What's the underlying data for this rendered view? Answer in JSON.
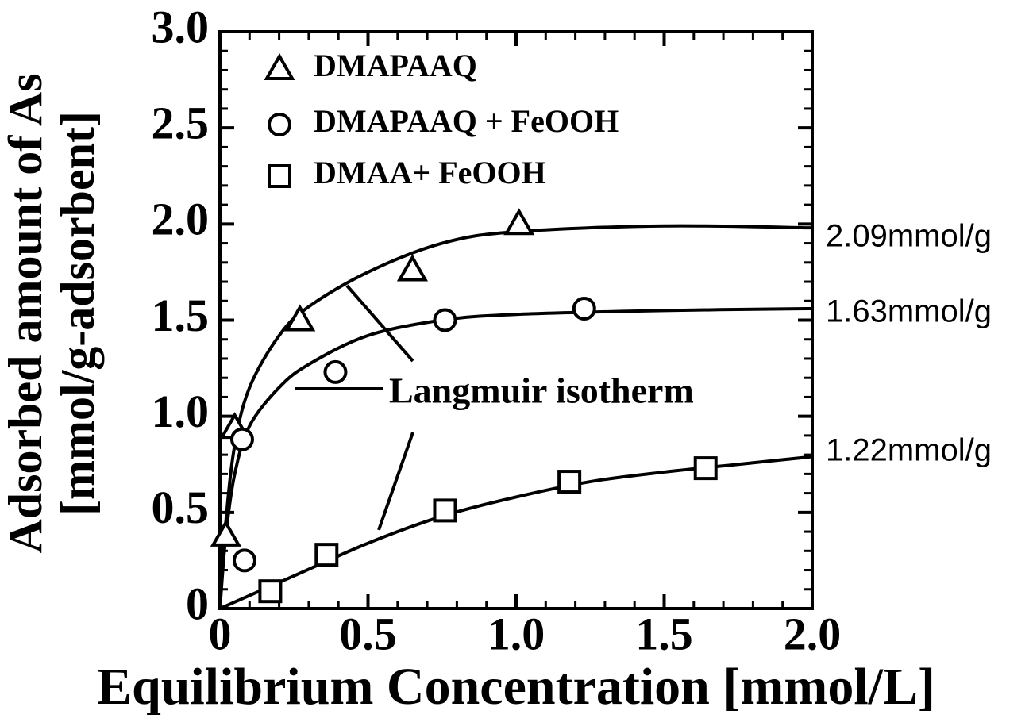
{
  "chart_data": {
    "type": "scatter",
    "xlabel": "Equilibrium Concentration [mmol/L]",
    "ylabel": [
      "Adsorbed amount of  As",
      "[mmol/g-adsorbent]"
    ],
    "xlim": [
      0,
      2.0
    ],
    "ylim": [
      0,
      3.0
    ],
    "xticks": [
      0,
      0.5,
      {
        "value": 1,
        "label": "1.0"
      },
      1.5,
      {
        "value": 2,
        "label": "2.0"
      }
    ],
    "yticks": [
      0,
      0.5,
      {
        "value": 1,
        "label": "1.0"
      },
      1.5,
      {
        "value": 2,
        "label": "2.0"
      },
      2.5,
      {
        "value": 3,
        "label": "3.0"
      }
    ],
    "color": "#000000",
    "series": [
      {
        "name": "DMAPAAQ",
        "marker": "triangle",
        "x": [
          0.02,
          0.05,
          0.27,
          0.65,
          1.01
        ],
        "values": [
          0.38,
          0.94,
          1.5,
          1.76,
          2.0
        ]
      },
      {
        "name": "DMAPAAQ + FeOOH",
        "marker": "circle",
        "x": [
          0.075,
          0.083,
          0.39,
          0.76,
          1.23
        ],
        "values": [
          0.88,
          0.25,
          1.23,
          1.5,
          1.56
        ]
      },
      {
        "name": "DMAA+ FeOOH",
        "marker": "square",
        "x": [
          0.17,
          0.36,
          0.76,
          1.18,
          1.64
        ],
        "values": [
          0.09,
          0.28,
          0.51,
          0.66,
          0.73
        ]
      }
    ],
    "fit_curves": [
      {
        "x": [
          0,
          0.02,
          0.05,
          0.1,
          0.2,
          0.3,
          0.5,
          0.75,
          1.0,
          1.5,
          2.0
        ],
        "values": [
          0,
          0.45,
          0.85,
          1.15,
          1.42,
          1.57,
          1.75,
          1.9,
          1.96,
          1.99,
          1.98
        ]
      },
      {
        "x": [
          0,
          0.02,
          0.05,
          0.1,
          0.2,
          0.3,
          0.5,
          0.75,
          1.0,
          1.5,
          2.0
        ],
        "values": [
          0,
          0.38,
          0.7,
          0.95,
          1.15,
          1.27,
          1.42,
          1.5,
          1.53,
          1.55,
          1.56
        ]
      },
      {
        "x": [
          0,
          0.25,
          0.5,
          0.75,
          1.0,
          1.25,
          1.5,
          1.75,
          2.0
        ],
        "values": [
          0,
          0.17,
          0.34,
          0.48,
          0.58,
          0.66,
          0.71,
          0.75,
          0.79
        ]
      }
    ],
    "annotations": [
      "Langmuir isotherm",
      "2.09mmol/g",
      "1.63mmol/g",
      "1.22mmol/g"
    ]
  }
}
